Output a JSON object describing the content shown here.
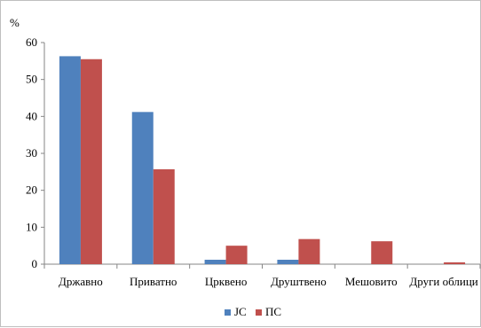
{
  "chart_data": {
    "type": "bar",
    "ylabel": "%",
    "ylim": [
      0,
      60
    ],
    "yticks": [
      0,
      10,
      20,
      30,
      40,
      50,
      60
    ],
    "categories": [
      "Државно",
      "Приватно",
      "Црквено",
      "Друштвено",
      "Мешовито",
      "Други облици"
    ],
    "series": [
      {
        "name": "ЈС",
        "color": "#4f81bd",
        "values": [
          56.3,
          41.2,
          1.2,
          1.2,
          0,
          0
        ]
      },
      {
        "name": "ПС",
        "color": "#c0504d",
        "values": [
          55.5,
          25.7,
          5.0,
          6.8,
          6.2,
          0.5
        ]
      }
    ],
    "grid": false,
    "legend_position": "bottom"
  }
}
